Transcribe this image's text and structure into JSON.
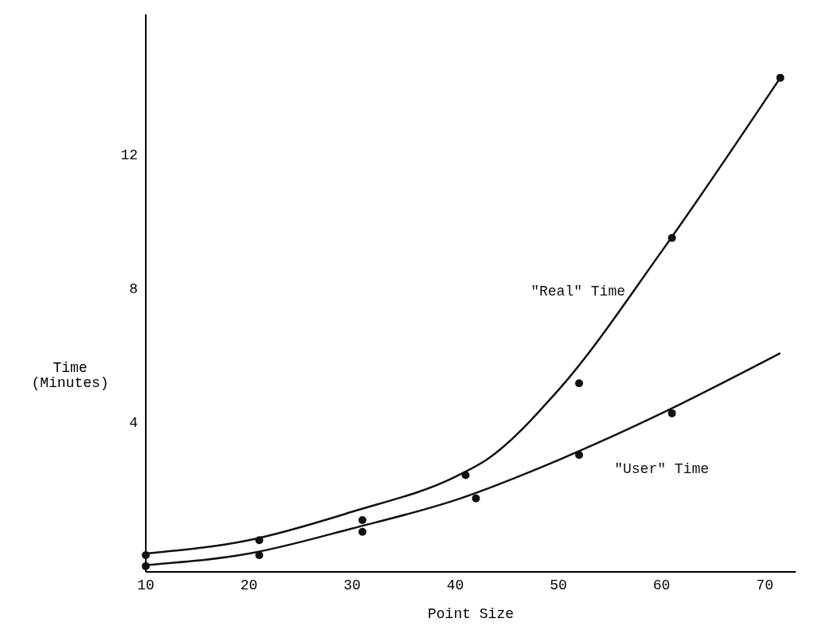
{
  "chart_data": {
    "type": "line",
    "xlabel": "Point Size",
    "ylabel": "Time\n(Minutes)",
    "xlim": [
      10,
      73
    ],
    "ylim": [
      -0.5,
      16.2
    ],
    "xticks": [
      10,
      20,
      30,
      40,
      50,
      60,
      70
    ],
    "yticks": [
      4,
      8,
      12
    ],
    "grid": false,
    "series": [
      {
        "name": "\"Real\" Time",
        "color": "#111111",
        "x": [
          10,
          20,
          30,
          40,
          43,
          50,
          60,
          71.5
        ],
        "values": [
          0.05,
          0.45,
          1.3,
          2.35,
          2.85,
          4.95,
          9.1,
          14.3
        ]
      },
      {
        "name": "\"User\" Time",
        "color": "#111111",
        "x": [
          10,
          20,
          30,
          40,
          50,
          60,
          71.5
        ],
        "values": [
          -0.3,
          0.05,
          0.8,
          1.65,
          2.85,
          4.25,
          6.05
        ]
      },
      {
        "type": "scatter",
        "color": "#111111",
        "x": [
          10,
          21,
          31,
          41,
          52,
          61,
          71.5
        ],
        "values": [
          0.0,
          0.45,
          1.05,
          2.4,
          5.15,
          9.5,
          14.3
        ]
      },
      {
        "type": "scatter",
        "color": "#111111",
        "x": [
          10,
          21,
          31,
          42,
          52,
          61
        ],
        "values": [
          -0.33,
          0.0,
          0.7,
          1.7,
          3.0,
          4.25
        ]
      }
    ]
  }
}
